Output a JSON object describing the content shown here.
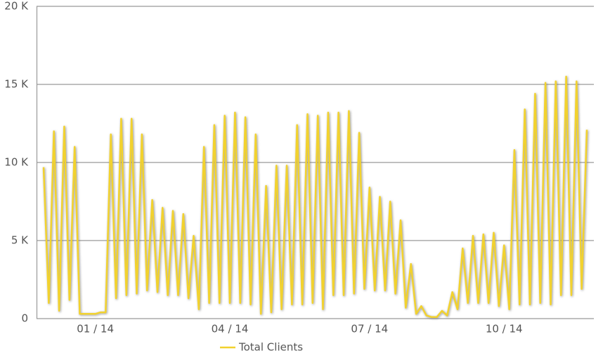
{
  "chart_data": {
    "type": "line",
    "categories": [
      null,
      null,
      null,
      null,
      null,
      null,
      null,
      null,
      null,
      null,
      "01 / 14",
      null,
      null,
      null,
      null,
      null,
      null,
      null,
      null,
      null,
      null,
      null,
      null,
      null,
      null,
      null,
      null,
      null,
      null,
      null,
      null,
      null,
      null,
      null,
      null,
      null,
      "04 / 14",
      null,
      null,
      null,
      null,
      null,
      null,
      null,
      null,
      null,
      null,
      null,
      null,
      null,
      null,
      null,
      null,
      null,
      null,
      null,
      null,
      null,
      null,
      null,
      null,
      null,
      null,
      "07 / 14",
      null,
      null,
      null,
      null,
      null,
      null,
      null,
      null,
      null,
      null,
      null,
      null,
      null,
      null,
      null,
      null,
      null,
      null,
      null,
      null,
      null,
      null,
      null,
      null,
      null,
      "10 / 14",
      null,
      null,
      null,
      null,
      null,
      null,
      null,
      null,
      null,
      null,
      null,
      null,
      null,
      null,
      null,
      null
    ],
    "series": [
      {
        "name": "Total Clients",
        "color": "#f2d22e",
        "values": [
          9700,
          1000,
          12000,
          500,
          12300,
          1200,
          11000,
          300,
          300,
          300,
          300,
          400,
          400,
          11800,
          1300,
          12800,
          1500,
          12800,
          1600,
          11800,
          1800,
          7600,
          1700,
          7100,
          1500,
          6900,
          1500,
          6700,
          1300,
          5300,
          600,
          11000,
          1000,
          12400,
          1000,
          13000,
          1000,
          13200,
          1000,
          12900,
          900,
          11800,
          300,
          8500,
          400,
          9800,
          600,
          9800,
          900,
          12400,
          900,
          13100,
          1000,
          13000,
          600,
          13200,
          1500,
          13200,
          1500,
          13300,
          1600,
          11900,
          1900,
          8400,
          1800,
          7800,
          1800,
          7500,
          1600,
          6300,
          700,
          3500,
          300,
          800,
          200,
          100,
          100,
          500,
          200,
          1700,
          600,
          4500,
          1000,
          5300,
          1000,
          5400,
          1000,
          5500,
          800,
          4700,
          600,
          10800,
          900,
          13400,
          900,
          14400,
          1000,
          15100,
          900,
          15200,
          1500,
          15500,
          1500,
          15200,
          1900,
          12100
        ]
      }
    ],
    "ylim": [
      0,
      20000
    ],
    "yticks": [
      0,
      {
        "value": 5000,
        "label": "5 K"
      },
      {
        "value": 10000,
        "label": "10 K"
      },
      {
        "value": 15000,
        "label": "15 K"
      },
      {
        "value": 20000,
        "label": "20 K"
      }
    ],
    "grid": true,
    "legend": "bottom"
  }
}
